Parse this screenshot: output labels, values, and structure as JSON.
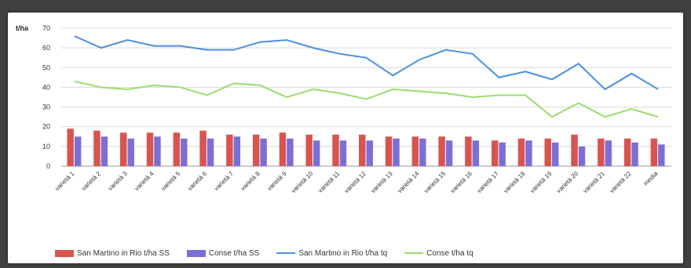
{
  "chart_data": {
    "type": "bar",
    "unit_label": "t/ha",
    "ylim": [
      0,
      70
    ],
    "yticks": [
      "0",
      "10",
      "20",
      "30",
      "40",
      "50",
      "60",
      "70"
    ],
    "grid": true,
    "legend_position": "bottom",
    "categories": [
      "varietà 1",
      "varietà 2",
      "varietà 3",
      "varietà 4",
      "varietà 5",
      "varietà 6",
      "varietà 7",
      "varietà 8",
      "varietà 9",
      "varietà 10",
      "varietà 11",
      "varietà 12",
      "varietà 13",
      "varietà 14",
      "varietà 15",
      "varietà 16",
      "varietà 17",
      "varietà 18",
      "varietà 19",
      "varietà 20",
      "varietà 21",
      "varietà 22",
      "media"
    ],
    "series": [
      {
        "name": "San Martino in Rio t/ha SS",
        "kind": "bar",
        "color": "#d9534f",
        "values": [
          19,
          18,
          17,
          17,
          17,
          18,
          16,
          16,
          17,
          16,
          16,
          16,
          15,
          15,
          15,
          15,
          13,
          14,
          14,
          16,
          14,
          14,
          14
        ]
      },
      {
        "name": "Conse t/ha SS",
        "kind": "bar",
        "color": "#7b6fd6",
        "values": [
          15,
          15,
          14,
          15,
          14,
          14,
          15,
          14,
          14,
          13,
          13,
          13,
          14,
          14,
          13,
          13,
          12,
          13,
          12,
          10,
          13,
          12,
          11
        ]
      },
      {
        "name": "San Martino in Rio t/ha tq",
        "kind": "line",
        "color": "#4a90e2",
        "values": [
          66,
          60,
          64,
          61,
          61,
          59,
          59,
          63,
          64,
          60,
          57,
          55,
          46,
          54,
          59,
          57,
          45,
          48,
          44,
          52,
          39,
          47,
          39
        ]
      },
      {
        "name": "Conse t/ha tq",
        "kind": "line",
        "color": "#9bdc6f",
        "values": [
          43,
          40,
          39,
          41,
          40,
          36,
          42,
          41,
          35,
          39,
          37,
          34,
          39,
          38,
          37,
          35,
          36,
          36,
          25,
          32,
          25,
          29,
          25
        ]
      }
    ]
  }
}
